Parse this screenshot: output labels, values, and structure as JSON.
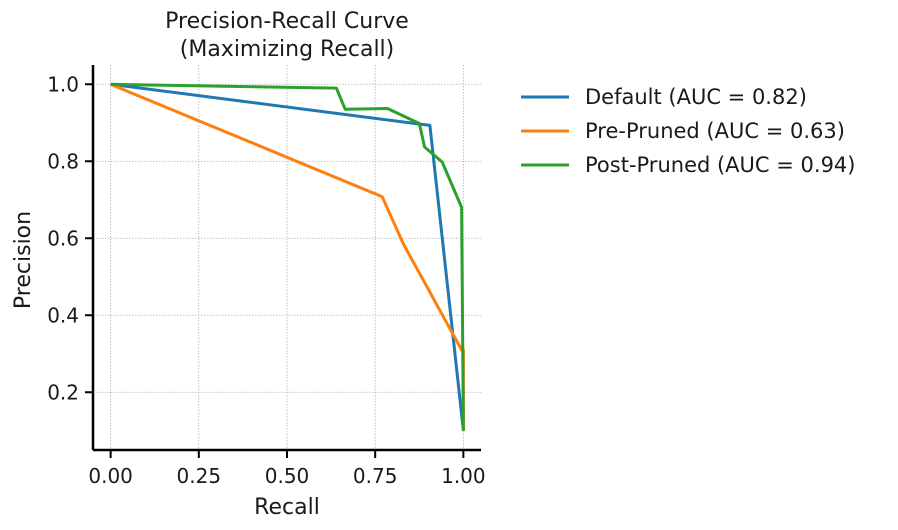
{
  "chart_data": {
    "type": "line",
    "title": [
      "Precision-Recall Curve",
      "(Maximizing Recall)"
    ],
    "xlabel": "Recall",
    "ylabel": "Precision",
    "xlim": [
      -0.05,
      1.05
    ],
    "ylim": [
      0.05,
      1.05
    ],
    "xticks": [
      0.0,
      0.25,
      0.5,
      0.75,
      1.0
    ],
    "xtick_labels": [
      "0.00",
      "0.25",
      "0.50",
      "0.75",
      "1.00"
    ],
    "yticks": [
      0.2,
      0.4,
      0.6,
      0.8,
      1.0
    ],
    "ytick_labels": [
      "0.2",
      "0.4",
      "0.6",
      "0.8",
      "1.0"
    ],
    "grid": true,
    "legend_position": "outside-right",
    "series": [
      {
        "name": "Default (AUC = 0.82)",
        "color": "#1f77b4",
        "x": [
          0.0,
          0.905,
          1.0,
          1.0
        ],
        "y": [
          1.0,
          0.893,
          0.1,
          0.1
        ]
      },
      {
        "name": "Pre-Pruned (AUC = 0.63)",
        "color": "#ff7f0e",
        "x": [
          0.0,
          0.77,
          0.83,
          0.995,
          1.0,
          1.0
        ],
        "y": [
          1.0,
          0.708,
          0.585,
          0.31,
          0.31,
          0.1
        ]
      },
      {
        "name": "Post-Pruned (AUC = 0.94)",
        "color": "#2ca02c",
        "x": [
          0.0,
          0.64,
          0.665,
          0.785,
          0.875,
          0.89,
          0.94,
          0.995,
          1.0
        ],
        "y": [
          1.0,
          0.99,
          0.935,
          0.937,
          0.898,
          0.837,
          0.798,
          0.68,
          0.1
        ]
      }
    ]
  }
}
